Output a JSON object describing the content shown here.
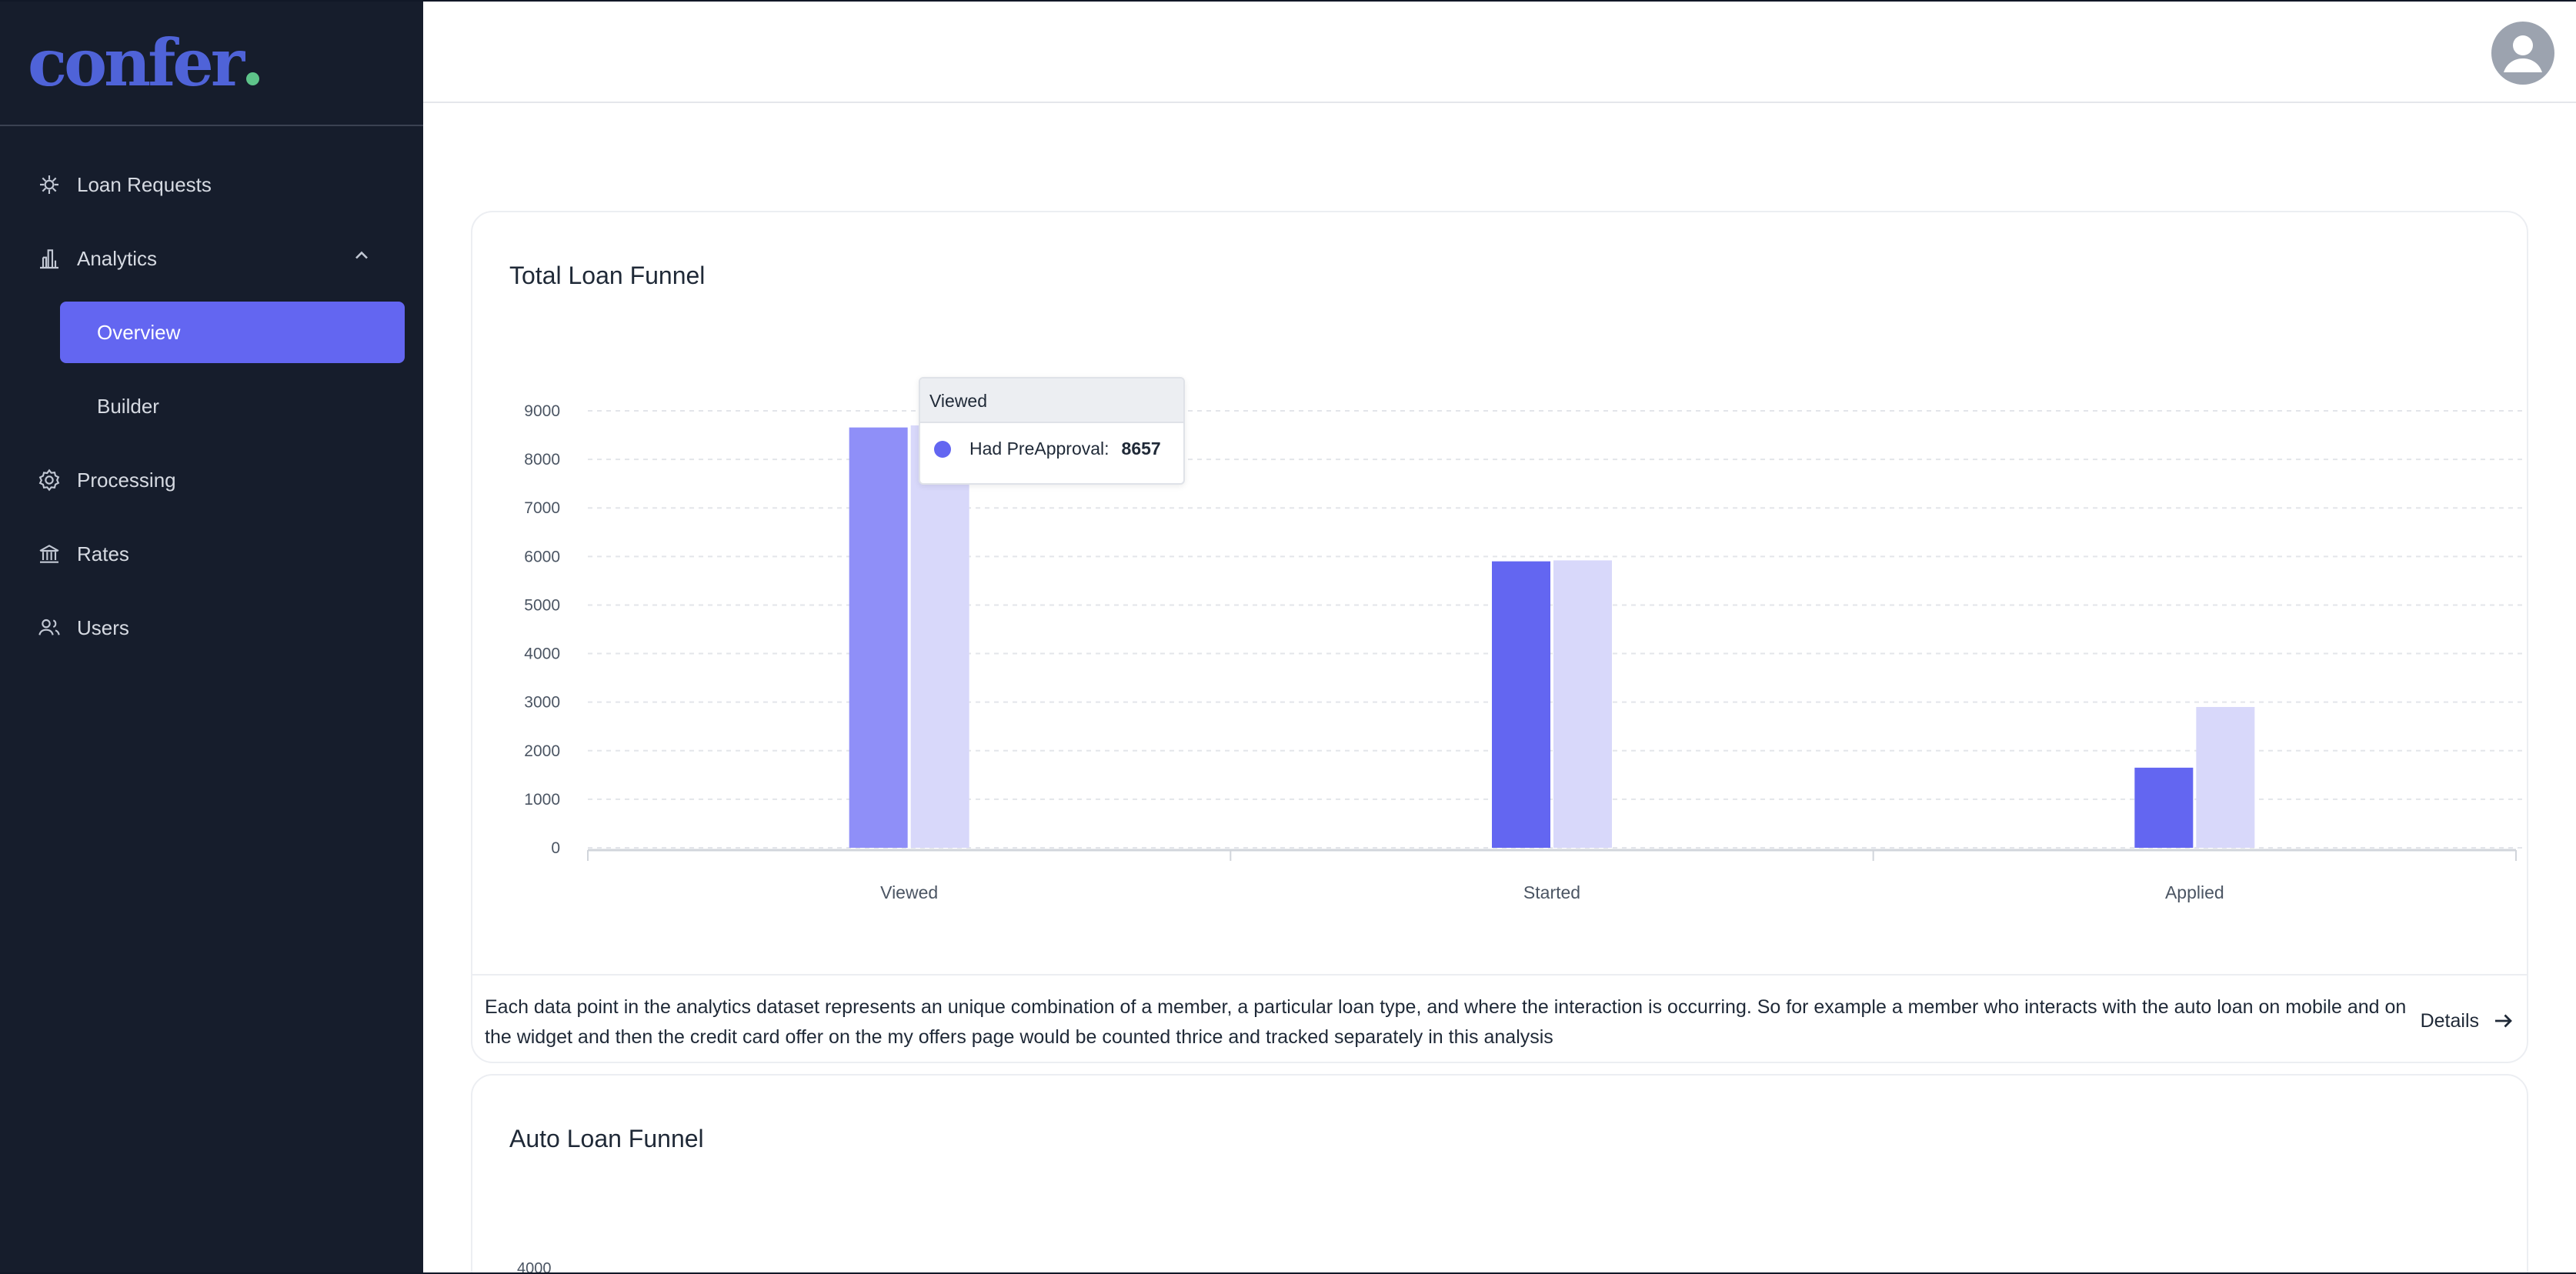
{
  "brand": {
    "name": "confer"
  },
  "sidebar": {
    "items": [
      {
        "label": "Loan Requests",
        "icon": "loan-requests-icon"
      },
      {
        "label": "Analytics",
        "icon": "analytics-icon"
      },
      {
        "label": "Processing",
        "icon": "processing-icon"
      },
      {
        "label": "Rates",
        "icon": "rates-icon"
      },
      {
        "label": "Users",
        "icon": "users-icon"
      }
    ],
    "analytics_sub": [
      {
        "label": "Overview",
        "active": true
      },
      {
        "label": "Builder",
        "active": false
      }
    ]
  },
  "cards": {
    "total_title": "Total Loan Funnel",
    "auto_title": "Auto Loan Funnel",
    "auto_first_tick": "4000"
  },
  "note": {
    "text": "Each data point in the analytics dataset represents an unique combination of a member, a particular loan type, and where the interaction is occurring. So for example a member who interacts with the auto loan on mobile and on the widget and then the credit card offer on the my offers page would be counted thrice and tracked separately in this analysis",
    "details_label": "Details"
  },
  "tooltip": {
    "title": "Viewed",
    "series_label": "Had PreApproval:",
    "value": "8657"
  },
  "colors": {
    "accent": "#6366f1",
    "accent_hover": "#8f8ff8",
    "secondary_bar": "#d8d8fa",
    "sidebar_bg": "#161d2c"
  },
  "chart_data": {
    "type": "bar",
    "categories": [
      "Viewed",
      "Started",
      "Applied"
    ],
    "series": [
      {
        "name": "Had PreApproval",
        "values": [
          8657,
          5900,
          1650
        ]
      },
      {
        "values": [
          8700,
          5920,
          2900
        ]
      }
    ],
    "y_ticks": [
      "0",
      "1000",
      "2000",
      "3000",
      "4000",
      "5000",
      "6000",
      "7000",
      "8000",
      "9000"
    ],
    "ylim": [
      0,
      9000
    ],
    "grid": true,
    "title": "Total Loan Funnel"
  }
}
